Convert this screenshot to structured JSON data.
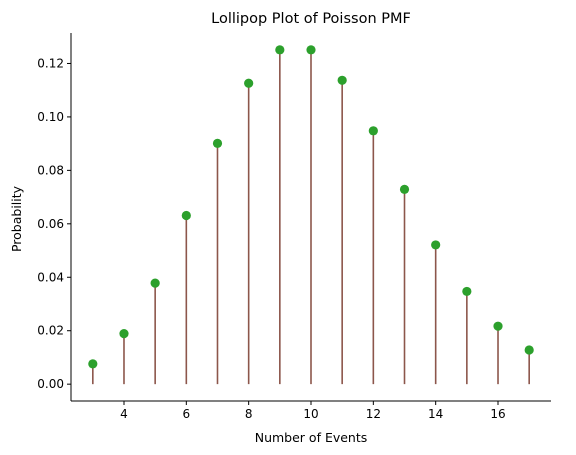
{
  "chart_data": {
    "type": "lollipop",
    "title": "Lollipop Plot of Poisson PMF",
    "xlabel": "Number of Events",
    "ylabel": "Probability",
    "x": [
      3,
      4,
      5,
      6,
      7,
      8,
      9,
      10,
      11,
      12,
      13,
      14,
      15,
      16,
      17
    ],
    "values": [
      0.0076,
      0.0189,
      0.0378,
      0.0631,
      0.0901,
      0.1126,
      0.1251,
      0.1251,
      0.1137,
      0.0948,
      0.0729,
      0.0521,
      0.0347,
      0.0217,
      0.0128
    ],
    "xlim": [
      2.3,
      17.7
    ],
    "ylim": [
      -0.0063,
      0.1314
    ],
    "xticks": [
      4,
      6,
      8,
      10,
      12,
      14,
      16
    ],
    "xtick_labels": [
      "4",
      "6",
      "8",
      "10",
      "12",
      "14",
      "16"
    ],
    "yticks": [
      0.0,
      0.02,
      0.04,
      0.06,
      0.08,
      0.1,
      0.12
    ],
    "ytick_labels": [
      "0.00",
      "0.02",
      "0.04",
      "0.06",
      "0.08",
      "0.10",
      "0.12"
    ],
    "grid": false,
    "colors": {
      "stem": "#8c564b",
      "marker": "#2ca02c",
      "axis": "#000000"
    }
  }
}
